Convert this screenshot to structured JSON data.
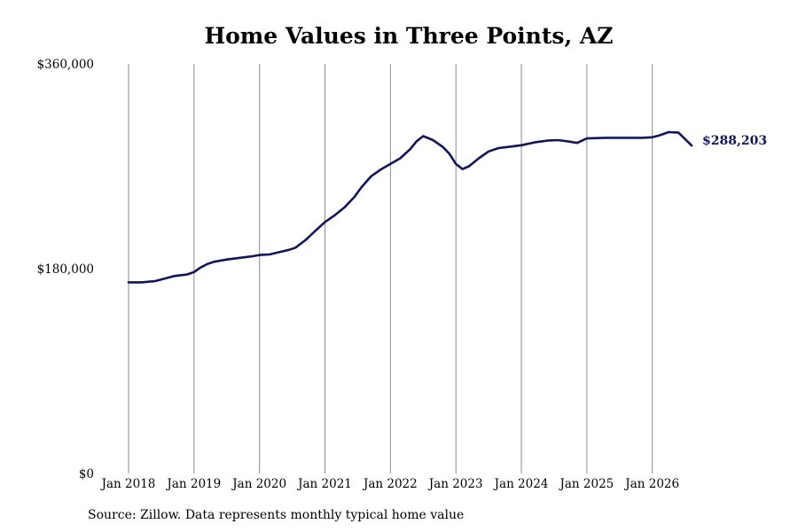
{
  "chart_data": {
    "type": "line",
    "title": "Home Values in Three Points, AZ",
    "source": "Source: Zillow. Data represents monthly typical home value",
    "end_label": "$288,203",
    "line_color": "#14145a",
    "grid_color": "#8c8c8c",
    "ylim": [
      0,
      360000
    ],
    "y_ticks": [
      {
        "value": 0,
        "label": "$0"
      },
      {
        "value": 180000,
        "label": "$180,000"
      },
      {
        "value": 360000,
        "label": "$360,000"
      }
    ],
    "xlim": [
      2018.0,
      2026.6
    ],
    "x_ticks": [
      {
        "value": 2018,
        "label": "Jan 2018"
      },
      {
        "value": 2019,
        "label": "Jan 2019"
      },
      {
        "value": 2020,
        "label": "Jan 2020"
      },
      {
        "value": 2021,
        "label": "Jan 2021"
      },
      {
        "value": 2022,
        "label": "Jan 2022"
      },
      {
        "value": 2023,
        "label": "Jan 2023"
      },
      {
        "value": 2024,
        "label": "Jan 2024"
      },
      {
        "value": 2025,
        "label": "Jan 2025"
      },
      {
        "value": 2026,
        "label": "Jan 2026"
      }
    ],
    "series": [
      {
        "x": [
          2018.0,
          2018.2,
          2018.4,
          2018.6,
          2018.7,
          2018.9,
          2019.0,
          2019.1,
          2019.2,
          2019.3,
          2019.5,
          2019.7,
          2019.9,
          2020.0,
          2020.15,
          2020.3,
          2020.45,
          2020.55,
          2020.7,
          2020.85,
          2021.0,
          2021.15,
          2021.3,
          2021.45,
          2021.55,
          2021.7,
          2021.85,
          2022.0,
          2022.15,
          2022.3,
          2022.4,
          2022.5,
          2022.65,
          2022.8,
          2022.9,
          2023.0,
          2023.1,
          2023.2,
          2023.35,
          2023.5,
          2023.65,
          2023.8,
          2024.0,
          2024.2,
          2024.4,
          2024.55,
          2024.7,
          2024.85,
          2025.0,
          2025.3,
          2025.6,
          2025.85,
          2026.0,
          2026.1,
          2026.25,
          2026.4,
          2026.6
        ],
        "y": [
          168000,
          168000,
          169000,
          172000,
          173500,
          175000,
          177000,
          181000,
          184000,
          186000,
          188000,
          189500,
          191000,
          192000,
          192500,
          194500,
          196500,
          198500,
          205000,
          213000,
          221000,
          227000,
          234000,
          243000,
          251000,
          261000,
          267000,
          272000,
          277000,
          285000,
          292000,
          296500,
          293000,
          287000,
          281000,
          272000,
          267500,
          270000,
          277000,
          283000,
          286000,
          287000,
          288500,
          291000,
          292500,
          293000,
          292000,
          290500,
          294500,
          295000,
          295000,
          295000,
          295500,
          297000,
          300000,
          299500,
          288203
        ]
      }
    ]
  }
}
